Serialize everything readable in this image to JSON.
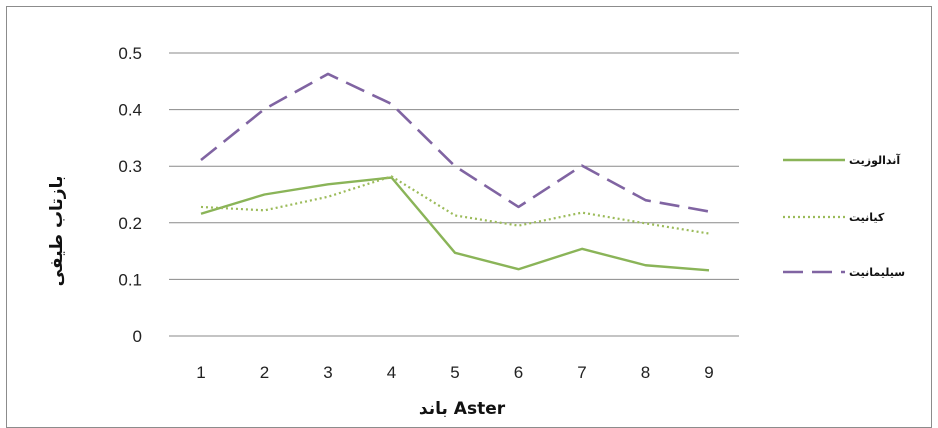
{
  "chart_data": {
    "type": "line",
    "xlabel": "باند Aster",
    "ylabel": "بازتاب طیفی",
    "x": [
      1,
      2,
      3,
      4,
      5,
      6,
      7,
      8,
      9
    ],
    "ylim": [
      0,
      0.5
    ],
    "yticks": [
      "0",
      "0.1",
      "0.2",
      "0.3",
      "0.4",
      "0.5"
    ],
    "xticks": [
      "1",
      "2",
      "3",
      "4",
      "5",
      "6",
      "7",
      "8",
      "9"
    ],
    "grid": "horizontal",
    "legend_position": "right",
    "series": [
      {
        "name": "آندالوزیت",
        "style": "solid",
        "color": "#8ab458",
        "values": [
          0.216,
          0.25,
          0.268,
          0.28,
          0.147,
          0.118,
          0.154,
          0.125,
          0.116
        ]
      },
      {
        "name": "کیانیت",
        "style": "dotted",
        "color": "#9bbb59",
        "values": [
          0.228,
          0.222,
          0.246,
          0.282,
          0.213,
          0.195,
          0.218,
          0.199,
          0.181
        ]
      },
      {
        "name": "سیلیمانیت",
        "style": "dashed",
        "color": "#8064a2",
        "values": [
          0.311,
          0.401,
          0.463,
          0.41,
          0.3,
          0.228,
          0.301,
          0.24,
          0.22
        ]
      }
    ]
  }
}
